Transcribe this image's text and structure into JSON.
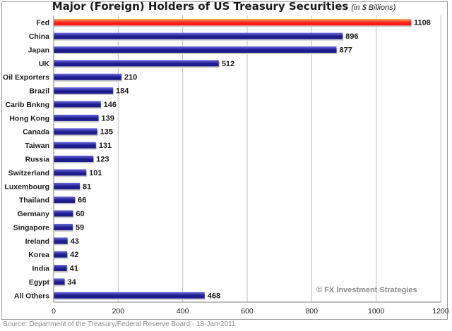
{
  "chart_data": {
    "type": "bar",
    "orientation": "horizontal",
    "title": "Major (Foreign) Holders of US Treasury Securities",
    "subtitle": "(in $ Billions)",
    "categories": [
      "Fed",
      "China",
      "Japan",
      "UK",
      "Oil Exporters",
      "Brazil",
      "Carib Bnkng",
      "Hong Kong",
      "Canada",
      "Taiwan",
      "Russia",
      "Switzerland",
      "Luxembourg",
      "Thailand",
      "Germany",
      "Singapore",
      "Ireland",
      "Korea",
      "India",
      "Egypt",
      "All Others"
    ],
    "values": [
      1108,
      896,
      877,
      512,
      210,
      184,
      146,
      139,
      135,
      131,
      123,
      101,
      81,
      66,
      60,
      59,
      43,
      42,
      41,
      34,
      468
    ],
    "xlim": [
      0,
      1200
    ],
    "xticks": [
      0,
      200,
      400,
      600,
      800,
      1000,
      1200
    ],
    "grid": true,
    "highlight_category": "Fed",
    "colors": {
      "highlight": "#ff1a1a",
      "highlight_light": "#ff9a4a",
      "bar": "#1c1c8c",
      "bar_light": "#6a6ae0",
      "grid": "#bfbfbf"
    },
    "xlabel": "",
    "ylabel": ""
  },
  "watermark": "© FX Investment Strategies",
  "source": "Source: Department of the Treasury/Federal Reserve Board - 18-Jan-2011"
}
